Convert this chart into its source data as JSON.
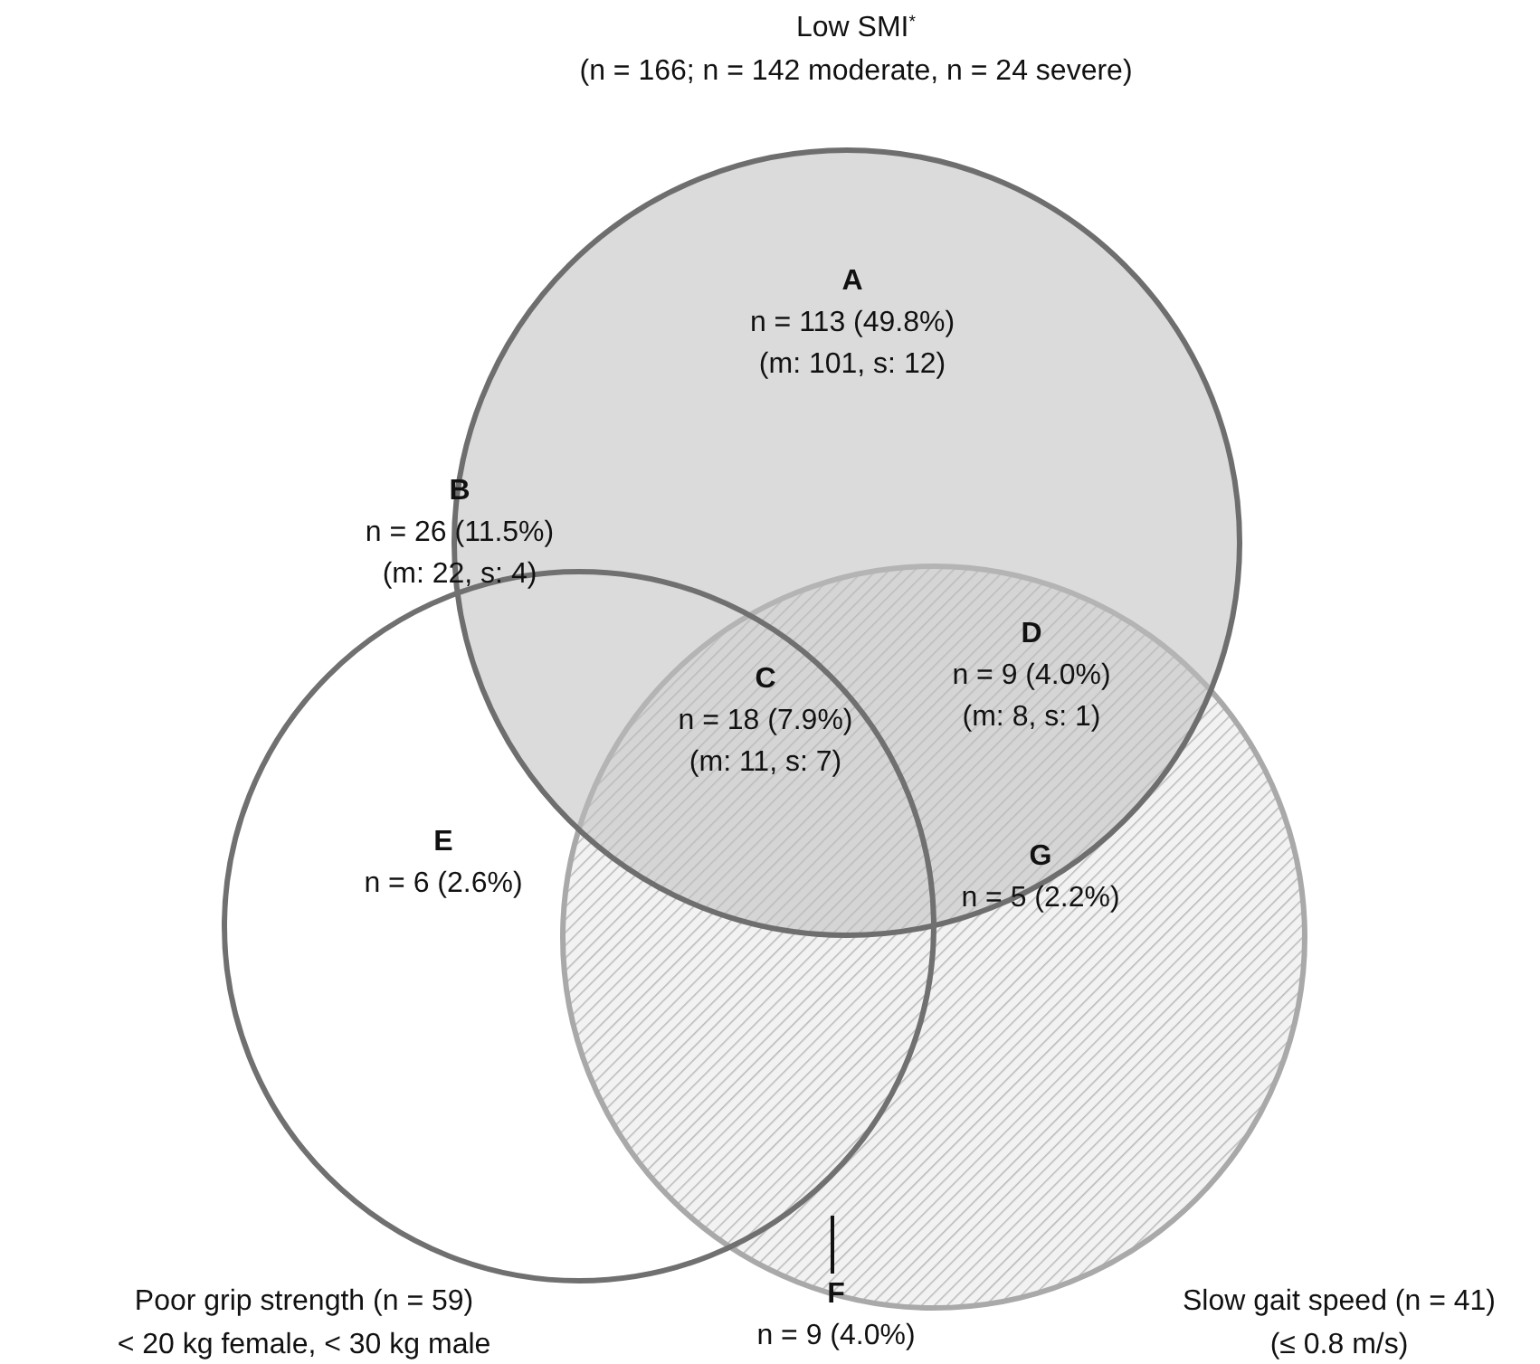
{
  "chart_data": {
    "type": "other",
    "categories": [
      "A",
      "B",
      "C",
      "D",
      "E",
      "F",
      "G"
    ],
    "values": [
      113,
      26,
      18,
      9,
      6,
      9,
      5
    ],
    "value_labels": [
      "n = 113 (49.8%)",
      "n = 26 (11.5%)",
      "n = 18 (7.9%)",
      "n = 9 (4.0%)",
      "n = 6 (2.6%)",
      "n = 9 (4.0%)",
      "n = 5 (2.2%)"
    ],
    "annotations": [
      "Low SMI$^{*}$",
      "(n = 166; n = 142 moderate, n = 24 severe)",
      "Poor grip strength (n = 59)",
      "< 20 kg female, < 30 kg male",
      "Slow gait speed (n = 41)",
      "(≤ 0.8 m/s)",
      {
        "text": "(m: 101, s: 12)",
        "x": "A"
      },
      {
        "text": "(m: 22, s: 4)",
        "x": "B"
      },
      {
        "text": "(m: 11, s: 7)",
        "x": "C"
      },
      {
        "text": "(m: 8, s: 1)",
        "x": "D"
      }
    ]
  }
}
